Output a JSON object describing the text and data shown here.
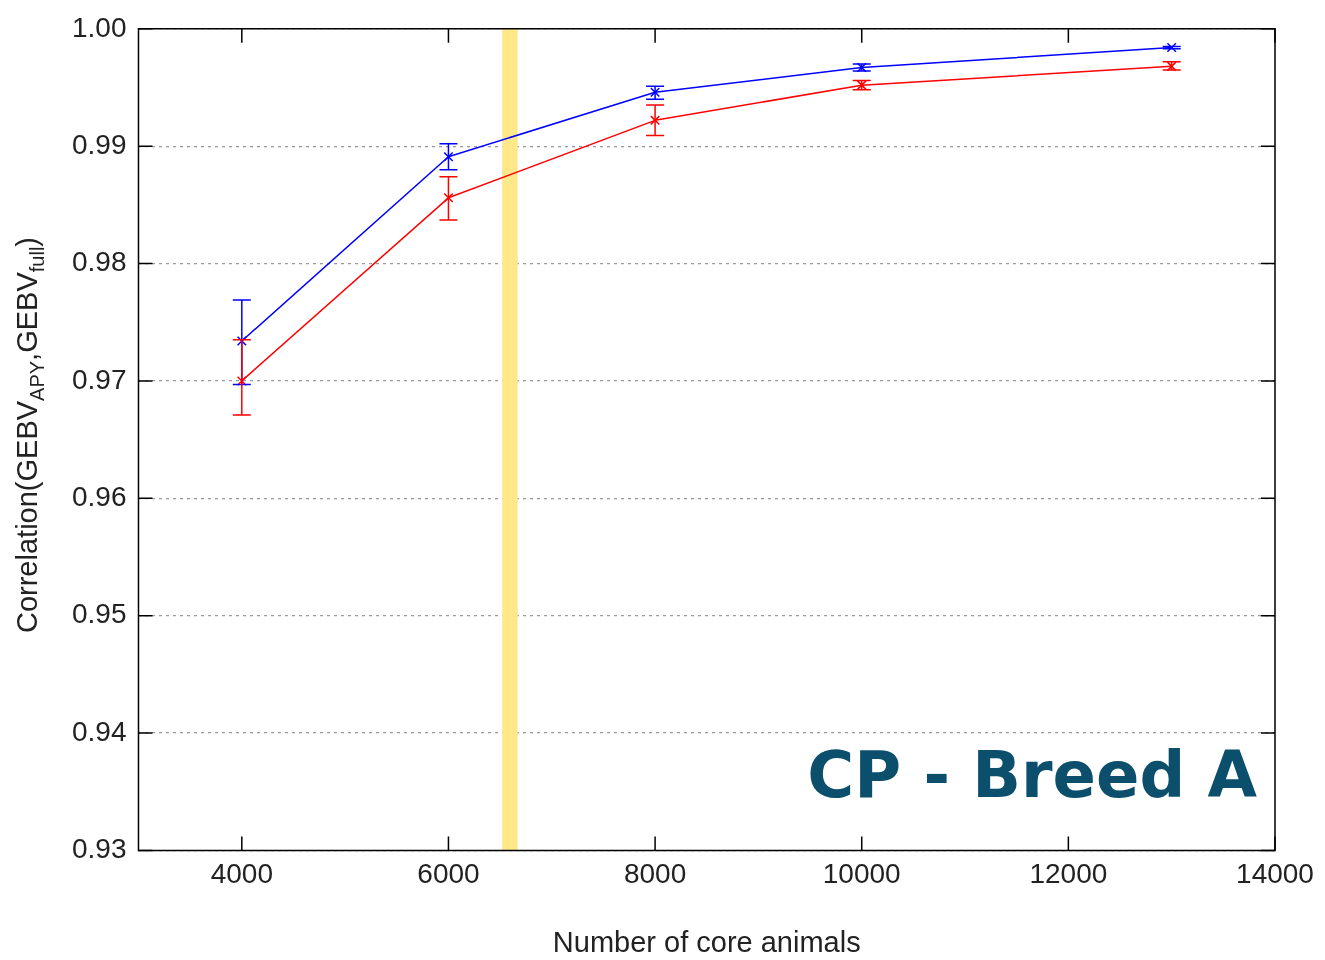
{
  "chart_data": {
    "type": "line",
    "xlabel": "Number of core animals",
    "ylabel": "Correlation(GEBV$_{APY}$,GEBV$_{full}$)",
    "x": [
      4000,
      6000,
      8000,
      10000,
      13000
    ],
    "series": [
      {
        "color": "#0000ff",
        "values": [
          0.9734,
          0.9891,
          0.9946,
          0.9967,
          0.9984
        ],
        "errors": [
          [
            0.9697,
            0.9769
          ],
          [
            0.988,
            0.9902
          ],
          [
            0.994,
            0.9951
          ],
          [
            0.9964,
            0.997
          ],
          [
            0.9983,
            0.9985
          ]
        ]
      },
      {
        "color": "#ff0000",
        "values": [
          0.97,
          0.9856,
          0.9922,
          0.9952,
          0.9968
        ],
        "errors": [
          [
            0.9671,
            0.9735
          ],
          [
            0.9837,
            0.9874
          ],
          [
            0.9909,
            0.9935
          ],
          [
            0.9948,
            0.9956
          ],
          [
            0.9965,
            0.9972
          ]
        ]
      }
    ],
    "bands": [
      {
        "axis": "x",
        "from": 6520,
        "to": 6670,
        "color": "#ffe88a"
      }
    ],
    "annotations": [
      "CP - Breed A"
    ],
    "xlim": [
      3000,
      14000
    ],
    "xticks": [
      4000,
      6000,
      8000,
      10000,
      12000,
      14000
    ],
    "ylim": [
      0.93,
      1.0
    ],
    "yticks": [
      {
        "value": 0.93,
        "label": "0.93"
      },
      {
        "value": 0.94,
        "label": "0.94"
      },
      {
        "value": 0.95,
        "label": "0.95"
      },
      {
        "value": 0.96,
        "label": "0.96"
      },
      {
        "value": 0.97,
        "label": "0.97"
      },
      {
        "value": 0.98,
        "label": "0.98"
      },
      {
        "value": 0.99,
        "label": "0.99"
      },
      {
        "value": 1.0,
        "label": "1.00"
      }
    ],
    "grid": "y",
    "legend": false,
    "marker": "cross",
    "line_style": "solid"
  }
}
